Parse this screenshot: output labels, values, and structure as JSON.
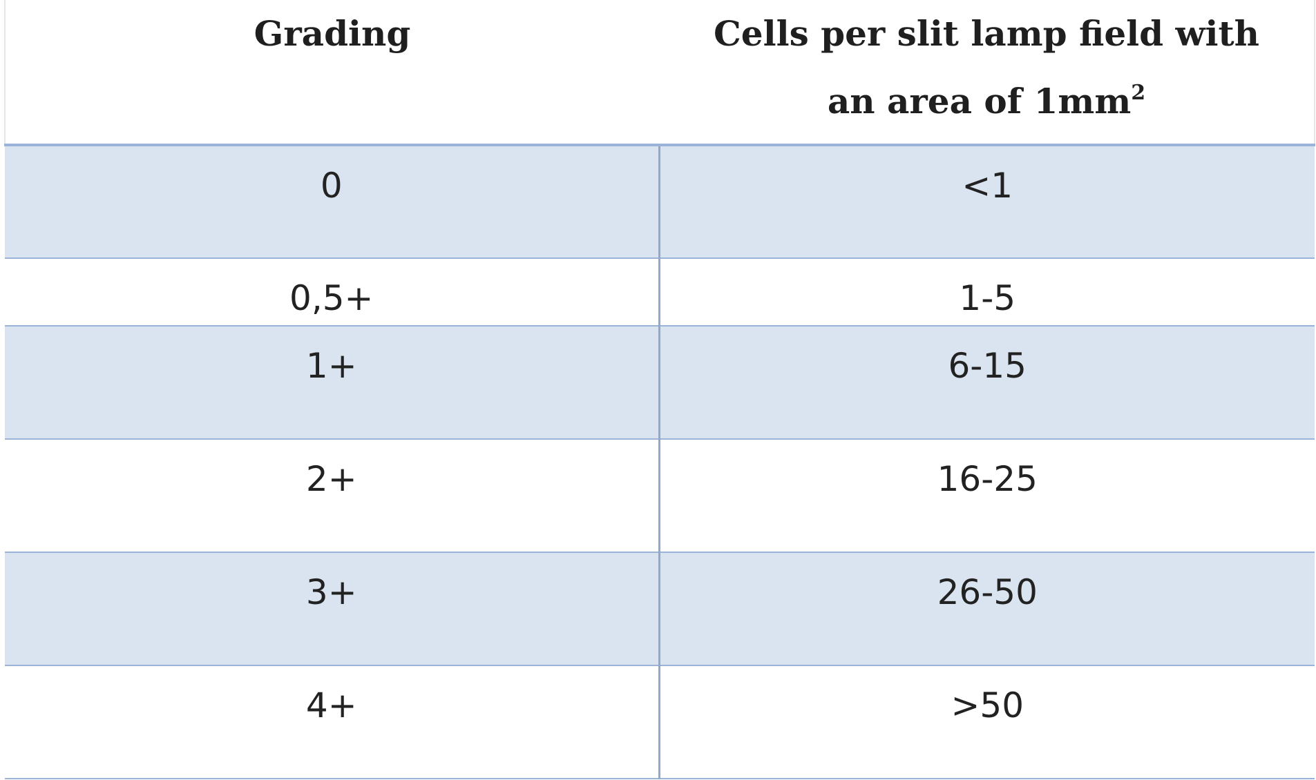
{
  "table": {
    "header": {
      "grading": "Grading",
      "cells_line1": "Cells per slit lamp field with",
      "cells_line2": "an area of 1mm",
      "cells_sup": "2"
    },
    "rows": [
      {
        "grading": "0",
        "cells": "<1"
      },
      {
        "grading": "0,5+",
        "cells": "1-5"
      },
      {
        "grading": "1+",
        "cells": "6-15"
      },
      {
        "grading": "2+",
        "cells": "16-25"
      },
      {
        "grading": "3+",
        "cells": "26-50"
      },
      {
        "grading": "4+",
        "cells": ">50"
      }
    ]
  },
  "colors": {
    "shaded_row": "#dae3f0",
    "border": "#9bb3d8"
  }
}
